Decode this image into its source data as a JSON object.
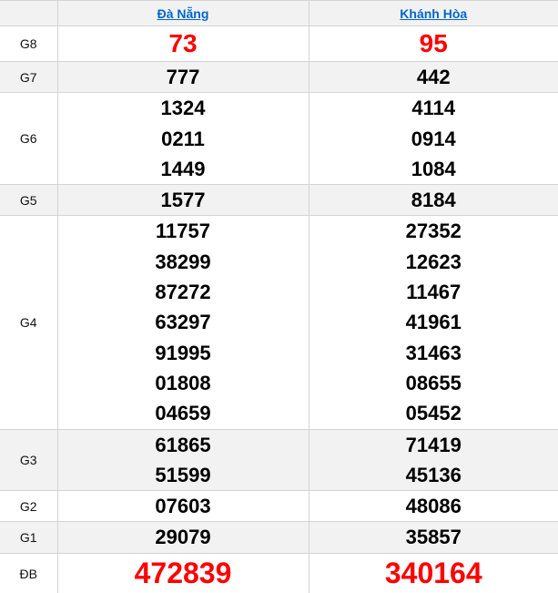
{
  "colors": {
    "red": "#ff0000",
    "blue": "#0066cc",
    "stripe": "#f2f2f2",
    "border": "#d4d4d4"
  },
  "columns": [
    "Đà Nẵng",
    "Khánh Hòa"
  ],
  "rows": [
    {
      "label": "G8",
      "dn": [
        "73"
      ],
      "kh": [
        "95"
      ]
    },
    {
      "label": "G7",
      "dn": [
        "777"
      ],
      "kh": [
        "442"
      ]
    },
    {
      "label": "G6",
      "dn": [
        "1324",
        "0211",
        "1449"
      ],
      "kh": [
        "4114",
        "0914",
        "1084"
      ]
    },
    {
      "label": "G5",
      "dn": [
        "1577"
      ],
      "kh": [
        "8184"
      ]
    },
    {
      "label": "G4",
      "dn": [
        "11757",
        "38299",
        "87272",
        "63297",
        "91995",
        "01808",
        "04659"
      ],
      "kh": [
        "27352",
        "12623",
        "11467",
        "41961",
        "31463",
        "08655",
        "05452"
      ]
    },
    {
      "label": "G3",
      "dn": [
        "61865",
        "51599"
      ],
      "kh": [
        "71419",
        "45136"
      ]
    },
    {
      "label": "G2",
      "dn": [
        "07603"
      ],
      "kh": [
        "48086"
      ]
    },
    {
      "label": "G1",
      "dn": [
        "29079"
      ],
      "kh": [
        "35857"
      ]
    },
    {
      "label": "ĐB",
      "dn": [
        "472839"
      ],
      "kh": [
        "340164"
      ]
    }
  ]
}
